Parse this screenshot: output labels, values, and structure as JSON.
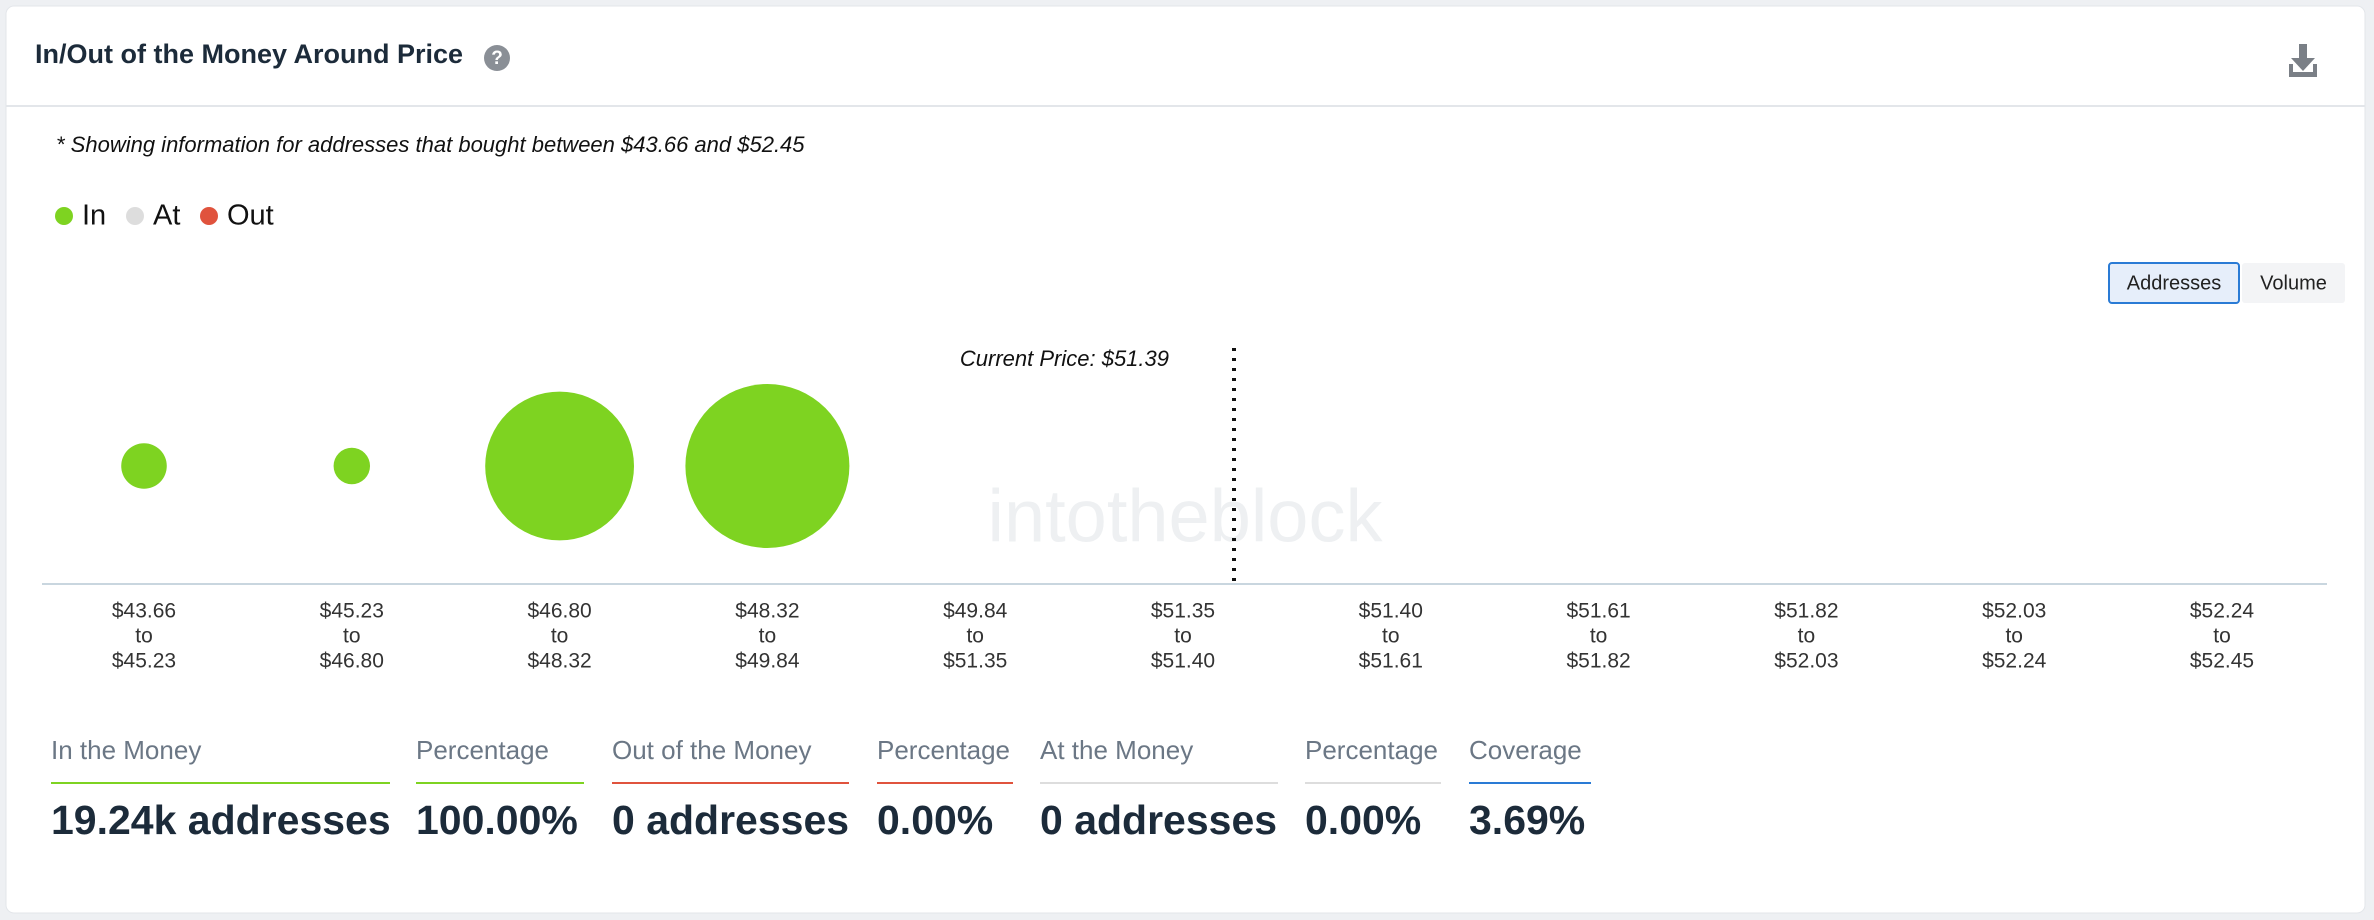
{
  "header": {
    "title": "In/Out of the Money Around Price"
  },
  "note": "* Showing information for addresses that bought between $43.66 and $52.45",
  "toggle": [
    "Addresses",
    "Volume"
  ],
  "watermark": "intotheblock",
  "chart_data": {
    "type": "bubble",
    "categories": [
      [
        "$43.66",
        "to",
        "$45.23"
      ],
      [
        "$45.23",
        "to",
        "$46.80"
      ],
      [
        "$46.80",
        "to",
        "$48.32"
      ],
      [
        "$48.32",
        "to",
        "$49.84"
      ],
      [
        "$49.84",
        "to",
        "$51.35"
      ],
      [
        "$51.35",
        "to",
        "$51.40"
      ],
      [
        "$51.40",
        "to",
        "$51.61"
      ],
      [
        "$51.61",
        "to",
        "$51.82"
      ],
      [
        "$51.82",
        "to",
        "$52.03"
      ],
      [
        "$52.03",
        "to",
        "$52.24"
      ],
      [
        "$52.24",
        "to",
        "$52.45"
      ]
    ],
    "series": [
      {
        "name": "In",
        "color": "#7ed321",
        "values": [
          761,
          487,
          8124,
          9867,
          0,
          0,
          0,
          0,
          0,
          0,
          0
        ]
      },
      {
        "name": "At",
        "color": "#dddddd",
        "values": [
          0,
          0,
          0,
          0,
          0,
          0,
          0,
          0,
          0,
          0,
          0
        ]
      },
      {
        "name": "Out",
        "color": "#e0533d",
        "values": [
          0,
          0,
          0,
          0,
          0,
          0,
          0,
          0,
          0,
          0,
          0
        ]
      }
    ],
    "current_price": 51.39,
    "current_price_label": "Current Price: $51.39"
  },
  "summary": [
    {
      "label": "In the Money",
      "value": "19.24k addresses",
      "color": "#7ed321"
    },
    {
      "label": "Percentage",
      "value": "100.00%",
      "color": "#7ed321"
    },
    {
      "label": "Out of the Money",
      "value": "0 addresses",
      "color": "#e0533d"
    },
    {
      "label": "Percentage",
      "value": "0.00%",
      "color": "#e0533d"
    },
    {
      "label": "At the Money",
      "value": "0 addresses",
      "color": "#dddddd"
    },
    {
      "label": "Percentage",
      "value": "0.00%",
      "color": "#dddddd"
    },
    {
      "label": "Coverage",
      "value": "3.69%",
      "color": "#2a7bd5"
    }
  ]
}
